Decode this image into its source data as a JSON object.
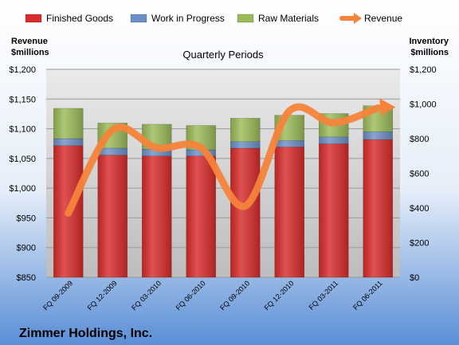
{
  "chart_data": {
    "type": "bar",
    "stacked": true,
    "title": "Quarterly Periods",
    "categories": [
      "FQ 09-2009",
      "FQ 12-2009",
      "FQ 03-2010",
      "FQ 06-2010",
      "FQ 09-2010",
      "FQ 12-2010",
      "FQ 03-2011",
      "FQ 06-2011"
    ],
    "series": [
      {
        "name": "Finished Goods",
        "axis": "right",
        "color": "#d92b2b",
        "values": [
          760,
          705,
          700,
          700,
          745,
          752,
          770,
          795
        ]
      },
      {
        "name": "Work in Progress",
        "axis": "right",
        "color": "#6d8fc7",
        "values": [
          40,
          40,
          38,
          36,
          38,
          38,
          40,
          45
        ]
      },
      {
        "name": "Raw Materials",
        "axis": "right",
        "color": "#9bbb59",
        "values": [
          175,
          145,
          145,
          140,
          135,
          145,
          135,
          150
        ]
      },
      {
        "name": "Revenue",
        "axis": "left",
        "type": "line",
        "color": "#f5833a",
        "values": [
          958,
          1098,
          1068,
          1068,
          970,
          1130,
          1110,
          1135
        ]
      }
    ],
    "left_axis": {
      "label": [
        "Revenue",
        "$millions"
      ],
      "range": [
        850,
        1200
      ],
      "ticks": [
        "$850",
        "$900",
        "$950",
        "$1,000",
        "$1,050",
        "$1,100",
        "$1,150",
        "$1,200"
      ]
    },
    "right_axis": {
      "label": [
        "Inventory",
        "$millions"
      ],
      "range": [
        0,
        1200
      ],
      "ticks": [
        "$0",
        "$200",
        "$400",
        "$600",
        "$800",
        "$1,000",
        "$1,200"
      ]
    },
    "legend_position": "top",
    "grid": true,
    "footer": "Zimmer Holdings, Inc."
  }
}
